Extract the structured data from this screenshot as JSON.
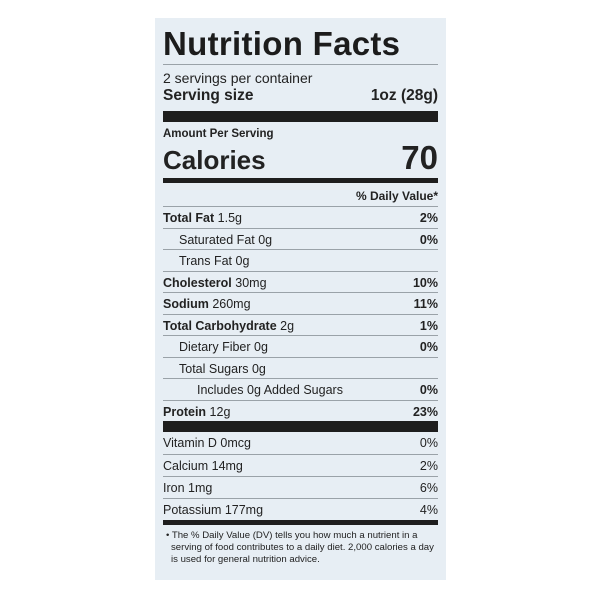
{
  "title": "Nutrition Facts",
  "servings_per_container": "2 servings per container",
  "serving_size": {
    "label": "Serving size",
    "value": "1oz (28g)"
  },
  "amount_per_serving": "Amount Per Serving",
  "calories": {
    "label": "Calories",
    "value": "70"
  },
  "daily_value_header": "% Daily Value*",
  "nutrients": [
    {
      "name": "Total Fat",
      "amount": "1.5g",
      "dv": "2%"
    },
    {
      "name": "Saturated Fat",
      "amount": "0g",
      "dv": "0%"
    },
    {
      "name": "Trans Fat",
      "amount": "0g",
      "dv": ""
    },
    {
      "name": "Cholesterol",
      "amount": "30mg",
      "dv": "10%"
    },
    {
      "name": "Sodium",
      "amount": "260mg",
      "dv": "11%"
    },
    {
      "name": "Total Carbohydrate",
      "amount": "2g",
      "dv": "1%"
    },
    {
      "name": "Dietary Fiber",
      "amount": "0g",
      "dv": "0%"
    },
    {
      "name": "Total Sugars",
      "amount": "0g",
      "dv": ""
    },
    {
      "name": "Includes 0g Added Sugars",
      "amount": "",
      "dv": "0%"
    },
    {
      "name": "Protein",
      "amount": "12g",
      "dv": "23%"
    }
  ],
  "vitamins": [
    {
      "label": "Vitamin D 0mcg",
      "dv": "0%"
    },
    {
      "label": "Calcium 14mg",
      "dv": "2%"
    },
    {
      "label": "Iron 1mg",
      "dv": "6%"
    },
    {
      "label": "Potassium 177mg",
      "dv": "4%"
    }
  ],
  "footnote": "• The % Daily Value (DV) tells you how much a nutrient in a serving of food contributes to a daily diet. 2,000 calories a day is used for general nutrition advice."
}
